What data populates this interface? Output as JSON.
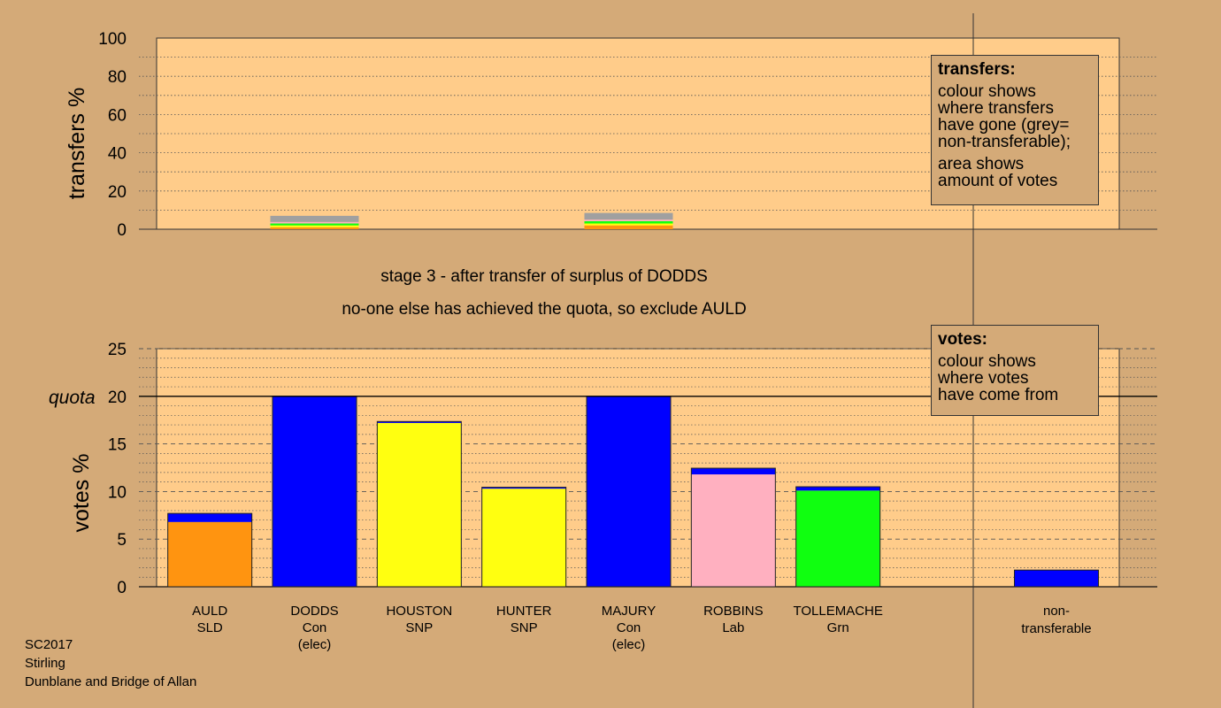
{
  "top_panel": {
    "ylabel": "transfers %",
    "yticks": [
      "0",
      "20",
      "40",
      "60",
      "80",
      "100"
    ],
    "legend": {
      "title": "transfers:",
      "lines": [
        "colour shows",
        "where transfers",
        "have gone (grey=",
        "non-transferable);"
      ],
      "lines2": [
        "area shows",
        "amount of votes"
      ]
    }
  },
  "stage_text": {
    "line1": "stage 3 - after transfer of surplus of DODDS",
    "line2": "no-one else has achieved the quota, so exclude AULD"
  },
  "bottom_panel": {
    "ylabel": "votes %",
    "quota_label": "quota",
    "yticks": [
      "0",
      "5",
      "10",
      "15",
      "20",
      "25"
    ],
    "legend": {
      "title": "votes:",
      "lines": [
        "colour shows",
        "where votes",
        "have come from"
      ]
    }
  },
  "candidates": [
    {
      "name": "AULD",
      "party": "SLD",
      "note": ""
    },
    {
      "name": "DODDS",
      "party": "Con",
      "note": "(elec)"
    },
    {
      "name": "HOUSTON",
      "party": "SNP",
      "note": ""
    },
    {
      "name": "HUNTER",
      "party": "SNP",
      "note": ""
    },
    {
      "name": "MAJURY",
      "party": "Con",
      "note": "(elec)"
    },
    {
      "name": "ROBBINS",
      "party": "Lab",
      "note": ""
    },
    {
      "name": "TOLLEMACHE",
      "party": "Grn",
      "note": ""
    }
  ],
  "nontransferable": {
    "line1": "non-",
    "line2": "transferable"
  },
  "footer": {
    "line1": "SC2017",
    "line2": "Stirling",
    "line3": "Dunblane and Bridge of Allan"
  },
  "colors": {
    "SLD": "#ff9410",
    "Con": "#0000ff",
    "SNP": "#ffff10",
    "Lab": "#ffb0c0",
    "Grn": "#10ff10",
    "nontransferable": "#a0a0a0",
    "plot_bg": "#ffcc8a",
    "page_bg": "#d4aa78"
  },
  "chart_data": [
    {
      "type": "bar",
      "title": "",
      "ylabel": "transfers %",
      "ylim": [
        0,
        100
      ],
      "stacked": true,
      "bars": [
        {
          "position": 2,
          "segments": [
            {
              "color": "SLD",
              "value": 1.0
            },
            {
              "color": "SNP",
              "value": 1.0
            },
            {
              "color": "Grn",
              "value": 1.0
            },
            {
              "color": "Lab",
              "value": 0.8
            },
            {
              "color": "nontransferable",
              "value": 3.2
            }
          ]
        },
        {
          "position": 5,
          "segments": [
            {
              "color": "SLD",
              "value": 2.0
            },
            {
              "color": "SNP",
              "value": 1.0
            },
            {
              "color": "Grn",
              "value": 1.2
            },
            {
              "color": "Lab",
              "value": 0.8
            },
            {
              "color": "nontransferable",
              "value": 3.5
            }
          ]
        }
      ]
    },
    {
      "type": "bar",
      "title": "",
      "ylabel": "votes %",
      "ylim": [
        0,
        25
      ],
      "quota": 20,
      "stacked": true,
      "categories": [
        "AULD",
        "DODDS",
        "HOUSTON",
        "HUNTER",
        "MAJURY",
        "ROBBINS",
        "TOLLEMACHE",
        "non-transferable"
      ],
      "bars": [
        {
          "category": "AULD",
          "segments": [
            {
              "color": "SLD",
              "value": 6.8
            },
            {
              "color": "Con",
              "value": 0.9
            }
          ]
        },
        {
          "category": "DODDS",
          "segments": [
            {
              "color": "Con",
              "value": 20.0
            }
          ]
        },
        {
          "category": "HOUSTON",
          "segments": [
            {
              "color": "SNP",
              "value": 17.2
            },
            {
              "color": "Con",
              "value": 0.15
            }
          ]
        },
        {
          "category": "HUNTER",
          "segments": [
            {
              "color": "SNP",
              "value": 10.3
            },
            {
              "color": "Con",
              "value": 0.15
            }
          ]
        },
        {
          "category": "MAJURY",
          "segments": [
            {
              "color": "Con",
              "value": 20.0
            }
          ]
        },
        {
          "category": "ROBBINS",
          "segments": [
            {
              "color": "Lab",
              "value": 11.8
            },
            {
              "color": "Con",
              "value": 0.65
            }
          ]
        },
        {
          "category": "TOLLEMACHE",
          "segments": [
            {
              "color": "Grn",
              "value": 10.1
            },
            {
              "color": "Con",
              "value": 0.4
            }
          ]
        },
        {
          "category": "non-transferable",
          "segments": [
            {
              "color": "Con",
              "value": 1.75
            }
          ]
        }
      ]
    }
  ]
}
